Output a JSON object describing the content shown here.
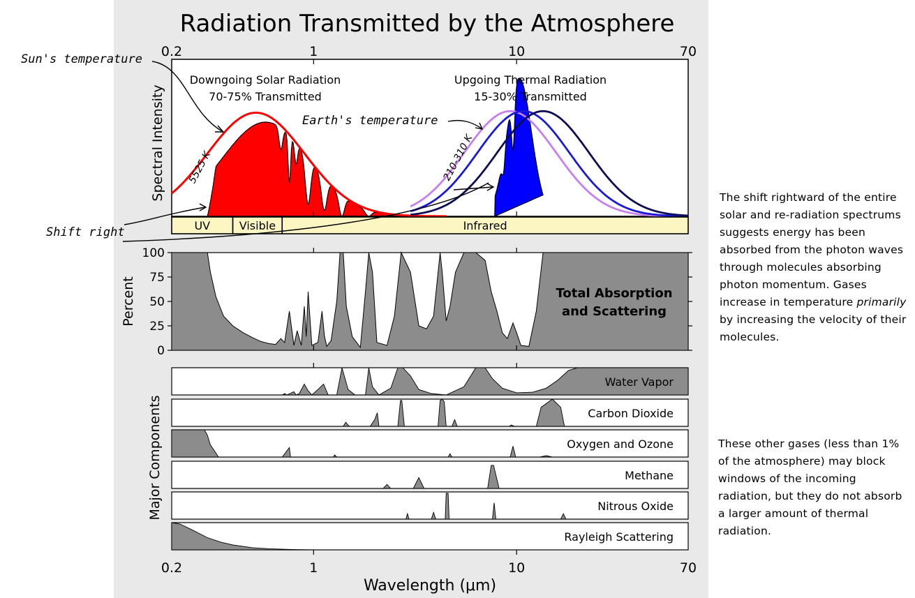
{
  "page": {
    "title": "Radiation Transmitted by the Atmosphere",
    "annotations": {
      "sun_temperature": "Sun's temperature",
      "shift_right": "Shift right",
      "earth_temperature": "Earth's temperature"
    },
    "side_notes": [
      {
        "before": "The shift rightward of the entire solar and re-radiation spectrums suggests energy has been absorbed from the photon waves through molecules absorbing photon momentum. Gases increase in temperature ",
        "emphasis": "primarily",
        "after": " by increasing the velocity of their molecules."
      },
      {
        "before": "These other gases (less than 1% of the atmosphere) may block windows of the incoming radiation, but they do not absorb a larger amount of thermal radiation.",
        "emphasis": "",
        "after": ""
      }
    ]
  },
  "chart_data": [
    {
      "type": "area",
      "panel": "spectral-intensity",
      "title": "Radiation Transmitted by the Atmosphere",
      "xlabel": "Wavelength (μm)",
      "ylabel": "Spectral Intensity",
      "x_scale": "log",
      "xlim": [
        0.2,
        70
      ],
      "x_ticks": [
        0.2,
        1,
        10,
        70
      ],
      "x_tick_labels": [
        "0.2",
        "1",
        "10",
        "70"
      ],
      "bands": [
        {
          "label": "UV",
          "from": 0.2,
          "to": 0.4
        },
        {
          "label": "Visible",
          "from": 0.4,
          "to": 0.7
        },
        {
          "label": "Infrared",
          "from": 0.7,
          "to": 70
        }
      ],
      "solar": {
        "heading": "Downgoing Solar Radiation",
        "subheading": "70-75% Transmitted",
        "curve_label": "5525 K",
        "color": "#ff0000",
        "blackbody_peak_um": 0.52
      },
      "thermal": {
        "heading": "Upgoing Thermal Radiation",
        "subheading": "15-30% Transmitted",
        "curve_label": "210-310 K",
        "color": "#0000ff",
        "curves": [
          {
            "peak_um": 9.3,
            "color": "#c77ff0"
          },
          {
            "peak_um": 10.8,
            "color": "#1a1ad6"
          },
          {
            "peak_um": 13.5,
            "color": "#0d0d55"
          }
        ]
      }
    },
    {
      "type": "area",
      "panel": "total-absorption",
      "label": "Total Absorption and Scattering",
      "ylabel": "Percent",
      "ylim": [
        0,
        100
      ],
      "y_ticks": [
        0,
        25,
        50,
        75,
        100
      ],
      "x_scale": "log",
      "fill": "#8c8c8c",
      "x": [
        0.2,
        0.3,
        0.31,
        0.33,
        0.36,
        0.4,
        0.45,
        0.5,
        0.55,
        0.6,
        0.65,
        0.69,
        0.72,
        0.76,
        0.8,
        0.83,
        0.87,
        0.9,
        0.92,
        0.94,
        0.98,
        1.05,
        1.1,
        1.13,
        1.16,
        1.22,
        1.3,
        1.35,
        1.4,
        1.45,
        1.55,
        1.7,
        1.8,
        1.87,
        1.95,
        2.05,
        2.3,
        2.5,
        2.7,
        3.0,
        3.3,
        3.6,
        3.9,
        4.2,
        4.3,
        4.5,
        4.7,
        5.0,
        5.5,
        6.3,
        7.0,
        7.5,
        8.0,
        8.5,
        9.0,
        9.6,
        10.0,
        10.5,
        11.5,
        12.5,
        13.5,
        14.5,
        15,
        17,
        20,
        25,
        30,
        40,
        50,
        70
      ],
      "y": [
        100,
        100,
        80,
        55,
        35,
        25,
        18,
        13,
        9,
        7,
        6,
        12,
        8,
        40,
        5,
        20,
        5,
        45,
        14,
        60,
        5,
        8,
        40,
        15,
        4,
        10,
        50,
        100,
        100,
        45,
        14,
        3,
        60,
        100,
        80,
        8,
        5,
        35,
        100,
        80,
        25,
        22,
        35,
        100,
        80,
        30,
        45,
        80,
        100,
        100,
        92,
        60,
        40,
        18,
        12,
        28,
        18,
        5,
        4,
        40,
        100,
        100,
        100,
        100,
        100,
        100,
        100,
        100,
        100,
        100
      ]
    },
    {
      "type": "area",
      "panel": "major-components",
      "ylabel": "Major Components",
      "x_scale": "log",
      "series": [
        {
          "name": "Water Vapor",
          "x": [
            0.2,
            0.7,
            0.72,
            0.74,
            0.8,
            0.82,
            0.85,
            0.9,
            0.94,
            0.98,
            1.05,
            1.12,
            1.18,
            1.3,
            1.38,
            1.48,
            1.6,
            1.8,
            1.87,
            1.95,
            2.1,
            2.4,
            2.6,
            2.75,
            3.0,
            3.3,
            3.8,
            4.5,
            5.5,
            6.3,
            7.0,
            7.6,
            8.5,
            10,
            12,
            14,
            16,
            18,
            20,
            25,
            40,
            70
          ],
          "y": [
            0,
            0,
            5,
            0,
            12,
            0,
            5,
            40,
            15,
            0,
            20,
            40,
            0,
            0,
            100,
            20,
            0,
            0,
            100,
            30,
            0,
            25,
            100,
            100,
            70,
            20,
            5,
            0,
            30,
            100,
            100,
            60,
            25,
            8,
            10,
            25,
            55,
            90,
            100,
            100,
            100,
            100
          ]
        },
        {
          "name": "Carbon Dioxide",
          "x": [
            0.2,
            1.4,
            1.44,
            1.5,
            1.9,
            2.0,
            2.06,
            2.1,
            2.6,
            2.68,
            2.72,
            2.8,
            4.1,
            4.2,
            4.3,
            4.4,
            4.5,
            4.8,
            4.95,
            5.1,
            9.2,
            9.4,
            9.8,
            12.5,
            13.2,
            15,
            16.5,
            17.2,
            70
          ],
          "y": [
            0,
            0,
            15,
            0,
            0,
            25,
            50,
            0,
            0,
            95,
            95,
            0,
            0,
            95,
            100,
            90,
            0,
            0,
            25,
            0,
            0,
            5,
            0,
            0,
            70,
            100,
            70,
            0,
            0
          ]
        },
        {
          "name": "Oxygen and Ozone",
          "x": [
            0.2,
            0.29,
            0.3,
            0.31,
            0.33,
            0.34,
            0.36,
            0.7,
            0.76,
            0.77,
            0.9,
            1.25,
            1.27,
            1.3,
            4.6,
            4.7,
            4.8,
            9.3,
            9.6,
            9.9,
            13,
            14,
            15,
            70
          ],
          "y": [
            100,
            100,
            80,
            45,
            15,
            0,
            0,
            0,
            35,
            0,
            0,
            0,
            8,
            0,
            0,
            12,
            0,
            0,
            40,
            0,
            0,
            5,
            0,
            0
          ]
        },
        {
          "name": "Methane",
          "x": [
            0.2,
            2.2,
            2.3,
            2.4,
            3.1,
            3.3,
            3.5,
            7.2,
            7.5,
            7.7,
            8.2,
            70
          ],
          "y": [
            0,
            0,
            15,
            0,
            0,
            40,
            0,
            0,
            85,
            85,
            0,
            0
          ]
        },
        {
          "name": "Nitrous Oxide",
          "x": [
            0.2,
            2.85,
            2.9,
            2.95,
            3.8,
            3.9,
            4.0,
            4.45,
            4.5,
            4.6,
            4.65,
            7.6,
            7.75,
            7.9,
            16.5,
            17,
            17.5,
            70
          ],
          "y": [
            0,
            0,
            20,
            0,
            0,
            25,
            0,
            0,
            95,
            95,
            0,
            0,
            60,
            0,
            0,
            20,
            0,
            0
          ]
        },
        {
          "name": "Rayleigh Scattering",
          "x": [
            0.2,
            0.22,
            0.25,
            0.3,
            0.35,
            0.4,
            0.5,
            0.6,
            0.8,
            1.0,
            1.5,
            70
          ],
          "y": [
            100,
            95,
            75,
            45,
            28,
            18,
            8,
            4,
            1,
            0,
            0,
            0
          ]
        }
      ]
    }
  ]
}
